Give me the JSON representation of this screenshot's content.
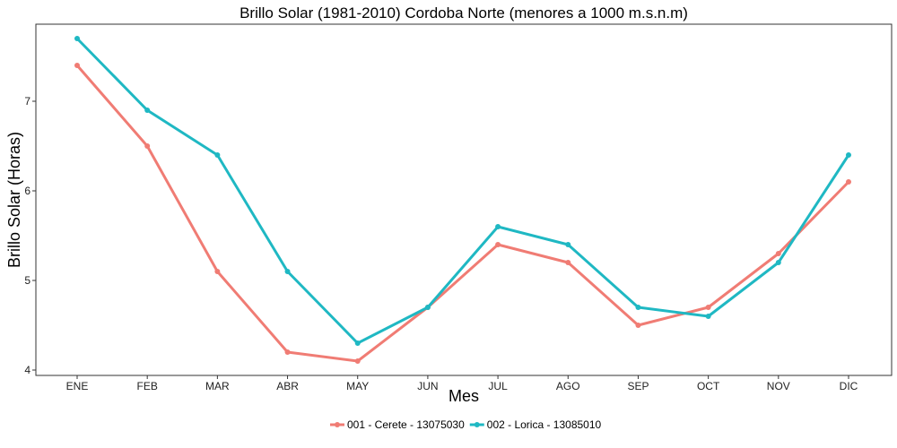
{
  "chart_data": {
    "type": "line",
    "title": "Brillo Solar (1981-2010) Cordoba Norte (menores a 1000 m.s.n.m)",
    "xlabel": "Mes",
    "ylabel": "Brillo Solar (Horas)",
    "categories": [
      "ENE",
      "FEB",
      "MAR",
      "ABR",
      "MAY",
      "JUN",
      "JUL",
      "AGO",
      "SEP",
      "OCT",
      "NOV",
      "DIC"
    ],
    "yticks": [
      4,
      5,
      6,
      7
    ],
    "ylim": [
      3.94,
      7.86
    ],
    "grid": false,
    "legend_position": "bottom",
    "series": [
      {
        "name": "001 - Cerete - 13075030",
        "color": "#F07C74",
        "values": [
          7.4,
          6.5,
          5.1,
          4.2,
          4.1,
          4.7,
          5.4,
          5.2,
          4.5,
          4.7,
          5.3,
          6.1
        ]
      },
      {
        "name": "002 - Lorica - 13085010",
        "color": "#1FB8C3",
        "values": [
          7.7,
          6.9,
          6.4,
          5.1,
          4.3,
          4.7,
          5.6,
          5.4,
          4.7,
          4.6,
          5.2,
          6.4
        ]
      }
    ]
  }
}
